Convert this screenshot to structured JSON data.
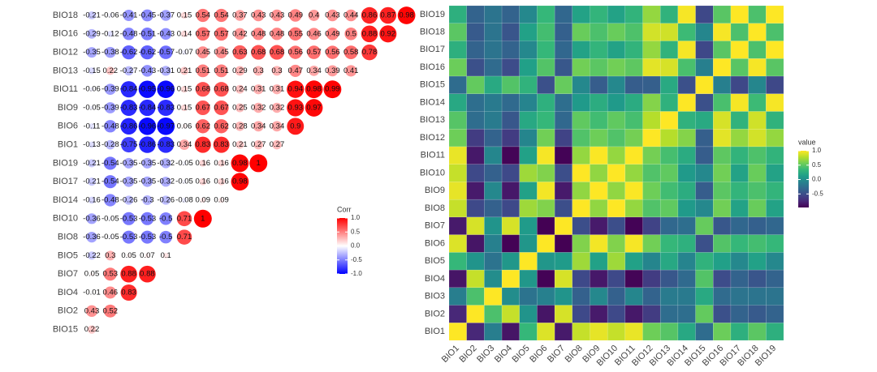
{
  "chart_data": [
    {
      "type": "corrplot",
      "rows": [
        "BIO18",
        "BIO16",
        "BIO12",
        "BIO13",
        "BIO11",
        "BIO9",
        "BIO6",
        "BIO1",
        "BIO19",
        "BIO17",
        "BIO14",
        "BIO10",
        "BIO8",
        "BIO5",
        "BIO7",
        "BIO4",
        "BIO2",
        "BIO15"
      ],
      "values": [
        [
          -0.21,
          -0.06,
          -0.41,
          -0.45,
          -0.37,
          0.15,
          0.54,
          0.54,
          0.37,
          0.43,
          0.43,
          0.49,
          0.4,
          0.43,
          0.44,
          0.86,
          0.87,
          0.98
        ],
        [
          -0.29,
          -0.12,
          -0.48,
          -0.51,
          -0.43,
          0.14,
          0.57,
          0.57,
          0.42,
          0.48,
          0.48,
          0.55,
          0.46,
          0.49,
          0.5,
          0.88,
          0.92
        ],
        [
          -0.35,
          -0.38,
          -0.62,
          -0.62,
          -0.57,
          -0.07,
          0.45,
          0.45,
          0.63,
          0.68,
          0.68,
          0.56,
          0.57,
          0.56,
          0.58,
          0.78
        ],
        [
          -0.15,
          0.22,
          -0.27,
          -0.43,
          -0.31,
          0.21,
          0.51,
          0.51,
          0.29,
          0.3,
          0.3,
          0.47,
          0.34,
          0.39,
          0.41
        ],
        [
          -0.06,
          -0.39,
          -0.84,
          -0.95,
          -0.96,
          0.15,
          0.68,
          0.68,
          0.24,
          0.31,
          0.31,
          0.94,
          0.98,
          0.99
        ],
        [
          -0.05,
          -0.39,
          -0.83,
          -0.84,
          -0.83,
          0.15,
          0.67,
          0.67,
          0.25,
          0.32,
          0.32,
          0.93,
          0.97
        ],
        [
          -0.11,
          -0.48,
          -0.86,
          -0.96,
          -0.97,
          0.06,
          0.62,
          0.62,
          0.28,
          0.34,
          0.34,
          0.9
        ],
        [
          -0.13,
          -0.28,
          -0.75,
          -0.86,
          -0.83,
          0.34,
          0.83,
          0.83,
          0.21,
          0.27,
          0.27
        ],
        [
          -0.21,
          -0.54,
          -0.35,
          -0.35,
          -0.32,
          -0.05,
          0.16,
          0.16,
          0.98,
          1
        ],
        [
          -0.21,
          -0.54,
          -0.35,
          -0.35,
          -0.32,
          -0.05,
          0.16,
          0.16,
          0.98
        ],
        [
          -0.16,
          -0.48,
          -0.26,
          -0.3,
          -0.26,
          -0.08,
          0.09,
          0.09
        ],
        [
          -0.36,
          -0.05,
          -0.53,
          -0.53,
          -0.5,
          0.71,
          1
        ],
        [
          -0.36,
          -0.05,
          -0.53,
          -0.53,
          -0.5,
          0.71
        ],
        [
          -0.22,
          0.3,
          0.05,
          0.07,
          0.1
        ],
        [
          0.05,
          0.53,
          0.88,
          0.88
        ],
        [
          -0.01,
          0.46,
          0.83
        ],
        [
          0.43,
          0.52
        ],
        [
          0.22
        ]
      ],
      "colors": [
        "#0000ff",
        "#ffffff",
        "#ff0000"
      ],
      "clim": [
        -1,
        1
      ],
      "legend_title": "Corr",
      "legend_ticks": [
        {
          "value": 1,
          "label": "1.0"
        },
        {
          "value": 0.5,
          "label": "0.5"
        },
        {
          "value": 0,
          "label": "0.0"
        },
        {
          "value": -0.5,
          "label": "-0.5"
        },
        {
          "value": -1,
          "label": "-1.0"
        }
      ]
    },
    {
      "type": "heatmap",
      "x": [
        "BIO1",
        "BIO2",
        "BIO3",
        "BIO4",
        "BIO5",
        "BIO6",
        "BIO7",
        "BIO8",
        "BIO9",
        "BIO10",
        "BIO11",
        "BIO12",
        "BIO13",
        "BIO14",
        "BIO15",
        "BIO16",
        "BIO17",
        "BIO18",
        "BIO19"
      ],
      "y": [
        "BIO1",
        "BIO2",
        "BIO3",
        "BIO4",
        "BIO5",
        "BIO6",
        "BIO7",
        "BIO8",
        "BIO9",
        "BIO10",
        "BIO11",
        "BIO12",
        "BIO13",
        "BIO14",
        "BIO15",
        "BIO16",
        "BIO17",
        "BIO18",
        "BIO19"
      ],
      "values": [
        [
          1,
          -0.75,
          -0.13,
          -0.86,
          0.34,
          0.9,
          -0.83,
          0.83,
          0.93,
          0.83,
          0.94,
          0.56,
          0.47,
          0.21,
          -0.28,
          0.55,
          0.27,
          0.49,
          0.27
        ],
        [
          -0.75,
          1,
          0.43,
          0.83,
          0.05,
          -0.86,
          0.88,
          -0.53,
          -0.83,
          -0.53,
          -0.84,
          -0.62,
          -0.27,
          -0.26,
          0.52,
          -0.48,
          -0.35,
          -0.41,
          -0.35
        ],
        [
          -0.13,
          0.43,
          1,
          -0.01,
          -0.22,
          -0.11,
          0.05,
          -0.36,
          -0.05,
          -0.36,
          -0.06,
          -0.35,
          -0.15,
          -0.16,
          0.22,
          -0.29,
          -0.21,
          -0.21,
          -0.21
        ],
        [
          -0.86,
          0.83,
          -0.01,
          1,
          0.07,
          -0.96,
          0.88,
          -0.53,
          -0.84,
          -0.53,
          -0.95,
          -0.62,
          -0.43,
          -0.3,
          0.46,
          -0.51,
          -0.35,
          -0.45,
          -0.35
        ],
        [
          0.34,
          0.05,
          -0.22,
          0.07,
          1,
          0.06,
          0.1,
          0.71,
          0.15,
          0.71,
          0.15,
          -0.07,
          0.21,
          -0.08,
          0.3,
          0.14,
          -0.05,
          0.15,
          -0.05
        ],
        [
          0.9,
          -0.86,
          -0.11,
          -0.96,
          0.06,
          1,
          -0.97,
          0.62,
          0.97,
          0.62,
          0.98,
          0.57,
          0.34,
          0.28,
          -0.48,
          0.46,
          0.34,
          0.4,
          0.34
        ],
        [
          -0.83,
          0.88,
          0.05,
          0.88,
          0.1,
          -0.97,
          1,
          -0.5,
          -0.83,
          -0.5,
          -0.96,
          -0.57,
          -0.31,
          -0.26,
          0.53,
          -0.43,
          -0.32,
          -0.37,
          -0.32
        ],
        [
          0.83,
          -0.53,
          -0.36,
          -0.53,
          0.71,
          0.62,
          -0.5,
          1,
          0.67,
          1,
          0.68,
          0.45,
          0.51,
          0.09,
          -0.05,
          0.57,
          0.16,
          0.54,
          0.16
        ],
        [
          0.93,
          -0.83,
          -0.05,
          -0.84,
          0.15,
          0.97,
          -0.83,
          0.67,
          1,
          0.67,
          0.99,
          0.56,
          0.39,
          0.25,
          -0.39,
          0.49,
          0.32,
          0.43,
          0.32
        ],
        [
          0.83,
          -0.53,
          -0.36,
          -0.53,
          0.71,
          0.62,
          -0.5,
          1,
          0.67,
          1,
          0.68,
          0.45,
          0.51,
          0.09,
          -0.05,
          0.57,
          0.16,
          0.54,
          0.16
        ],
        [
          0.94,
          -0.84,
          -0.06,
          -0.95,
          0.15,
          0.98,
          -0.96,
          0.68,
          0.99,
          0.68,
          1,
          0.58,
          0.41,
          0.24,
          -0.39,
          0.5,
          0.31,
          0.44,
          0.31
        ],
        [
          0.56,
          -0.62,
          -0.35,
          -0.62,
          -0.07,
          0.57,
          -0.57,
          0.45,
          0.56,
          0.45,
          0.58,
          1,
          0.78,
          0.63,
          -0.38,
          0.92,
          0.68,
          0.87,
          0.68
        ],
        [
          0.47,
          -0.27,
          -0.15,
          -0.43,
          0.21,
          0.34,
          -0.31,
          0.51,
          0.39,
          0.51,
          0.41,
          0.78,
          1,
          0.29,
          0.22,
          0.88,
          0.3,
          0.86,
          0.3
        ],
        [
          0.21,
          -0.26,
          -0.16,
          -0.3,
          -0.08,
          0.28,
          -0.26,
          0.09,
          0.25,
          0.09,
          0.24,
          0.63,
          0.29,
          1,
          -0.48,
          0.42,
          0.98,
          0.37,
          0.98
        ],
        [
          -0.28,
          0.52,
          0.22,
          0.46,
          0.3,
          -0.48,
          0.53,
          -0.05,
          -0.39,
          -0.05,
          -0.39,
          -0.38,
          0.22,
          -0.48,
          1,
          -0.12,
          -0.54,
          -0.06,
          -0.54
        ],
        [
          0.55,
          -0.48,
          -0.29,
          -0.51,
          0.14,
          0.46,
          -0.43,
          0.57,
          0.49,
          0.57,
          0.5,
          0.92,
          0.88,
          0.42,
          -0.12,
          1,
          0.48,
          0.98,
          0.48
        ],
        [
          0.27,
          -0.35,
          -0.21,
          -0.35,
          -0.05,
          0.34,
          -0.32,
          0.16,
          0.32,
          0.16,
          0.31,
          0.68,
          0.3,
          0.98,
          -0.54,
          0.48,
          1,
          0.43,
          1
        ],
        [
          0.49,
          -0.41,
          -0.21,
          -0.45,
          0.15,
          0.4,
          -0.37,
          0.54,
          0.43,
          0.54,
          0.44,
          0.87,
          0.86,
          0.37,
          -0.06,
          0.98,
          0.43,
          1,
          0.43
        ],
        [
          0.27,
          -0.35,
          -0.21,
          -0.35,
          -0.05,
          0.34,
          -0.32,
          0.16,
          0.32,
          0.16,
          0.31,
          0.68,
          0.3,
          0.98,
          -0.54,
          0.48,
          1,
          0.43,
          1
        ]
      ],
      "colors": [
        "#440154",
        "#482878",
        "#3e4989",
        "#31688e",
        "#26828e",
        "#1f9e89",
        "#35b779",
        "#6ece58",
        "#b5de2b",
        "#fde725"
      ],
      "clim": [
        -0.97,
        1
      ],
      "legend_title": "value",
      "legend_ticks": [
        {
          "value": 1,
          "label": "1.0"
        },
        {
          "value": 0.5,
          "label": "0.5"
        },
        {
          "value": 0,
          "label": "0.0"
        },
        {
          "value": -0.5,
          "label": "-0.5"
        }
      ]
    }
  ]
}
